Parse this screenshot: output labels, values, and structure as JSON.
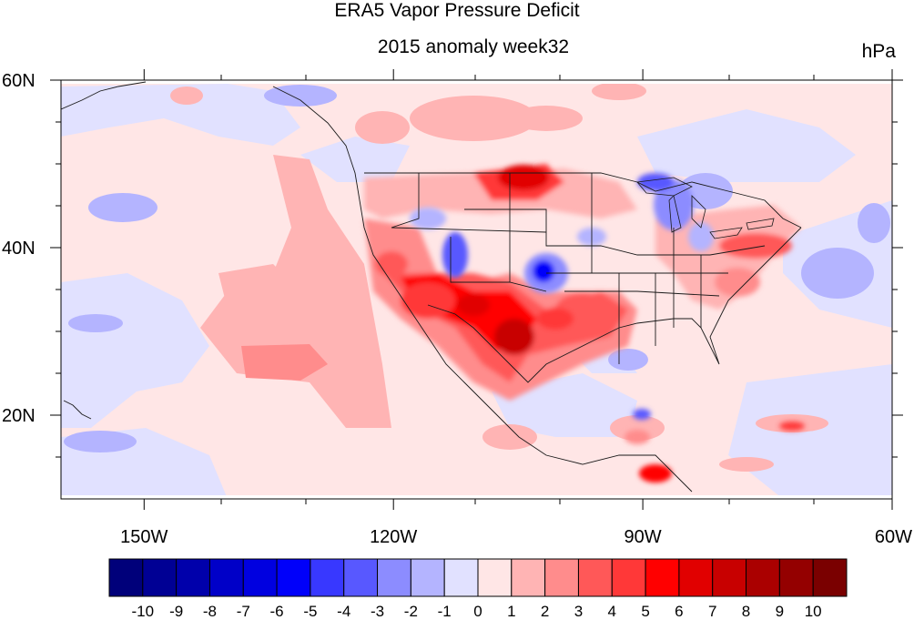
{
  "title": "ERA5 Vapor Pressure Deficit",
  "subtitle": "2015 anomaly week32",
  "units": "hPa",
  "map": {
    "lon_range": [
      -160,
      -60
    ],
    "lat_range": [
      10,
      60
    ],
    "lon_ticks": [
      {
        "lon": -150,
        "label": "150W"
      },
      {
        "lon": -120,
        "label": "120W"
      },
      {
        "lon": -90,
        "label": "90W"
      },
      {
        "lon": -60,
        "label": "60W"
      }
    ],
    "lat_ticks": [
      {
        "lat": 60,
        "label": "60N"
      },
      {
        "lat": 40,
        "label": "40N"
      },
      {
        "lat": 20,
        "label": "20N"
      }
    ]
  },
  "colorbar": {
    "labels": [
      "-10",
      "-9",
      "-8",
      "-7",
      "-6",
      "-5",
      "-4",
      "-3",
      "-2",
      "-1",
      "0",
      "1",
      "2",
      "3",
      "4",
      "5",
      "6",
      "7",
      "8",
      "9",
      "10"
    ],
    "colors": [
      "#00007a",
      "#000094",
      "#0000ab",
      "#0000c8",
      "#0000e0",
      "#0000fa",
      "#3838ff",
      "#5858ff",
      "#8c8cff",
      "#b4b4ff",
      "#e1e1ff",
      "#ffe6e6",
      "#ffb4b4",
      "#ff8c8c",
      "#ff5858",
      "#ff3838",
      "#ff0000",
      "#e10000",
      "#c80000",
      "#aa0000",
      "#940000",
      "#7a0000"
    ]
  }
}
